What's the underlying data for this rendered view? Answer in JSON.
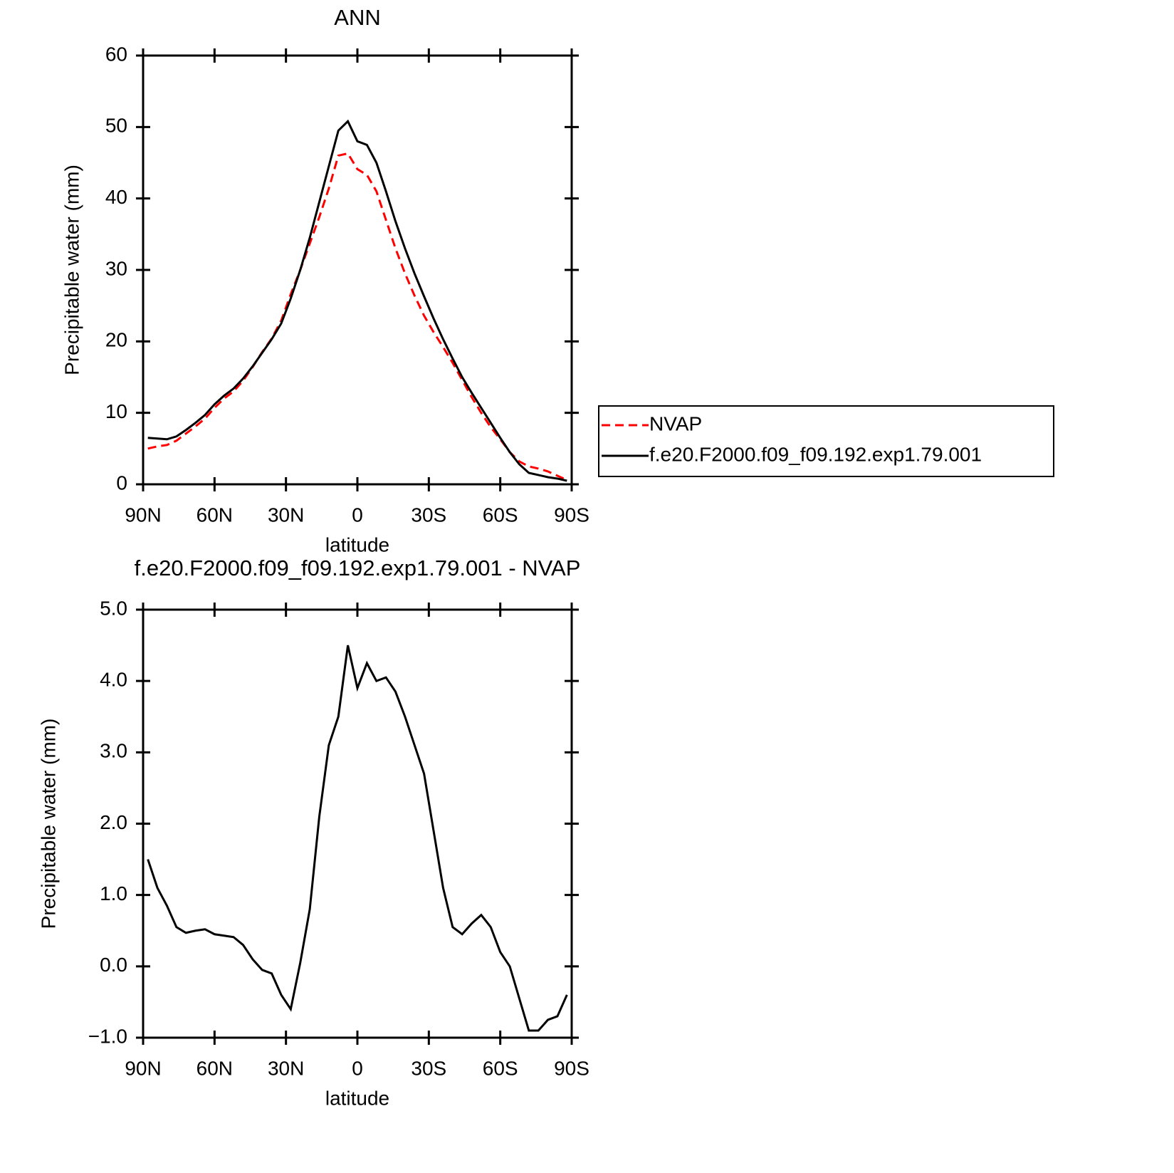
{
  "chart_data": [
    {
      "type": "line",
      "title": "ANN",
      "xlabel": "latitude",
      "ylabel": "Precipitable water (mm)",
      "x": [
        88,
        84,
        80,
        76,
        72,
        68,
        64,
        60,
        56,
        52,
        48,
        44,
        40,
        36,
        32,
        28,
        24,
        20,
        16,
        12,
        8,
        4,
        0,
        -4,
        -8,
        -12,
        -16,
        -20,
        -24,
        -28,
        -32,
        -36,
        -40,
        -44,
        -48,
        -52,
        -56,
        -60,
        -64,
        -68,
        -72,
        -76,
        -80,
        -84,
        -88
      ],
      "series": [
        {
          "name": "NVAP",
          "color": "#ff0000",
          "dash": "dashed",
          "values": [
            5.0,
            5.3,
            5.5,
            6.1,
            7.1,
            8.1,
            9.2,
            10.7,
            12.0,
            13.0,
            14.5,
            16.4,
            18.5,
            20.4,
            22.9,
            26.6,
            30.0,
            33.7,
            37.4,
            41.4,
            46.0,
            46.3,
            44.1,
            43.3,
            41.0,
            37.0,
            33.0,
            29.5,
            26.4,
            23.6,
            21.3,
            19.2,
            17.0,
            14.6,
            12.2,
            10.0,
            8.0,
            6.3,
            4.5,
            3.2,
            2.5,
            2.2,
            1.8,
            1.2,
            0.6
          ]
        },
        {
          "name": "f.e20.F2000.f09_f09.192.exp1.79.001",
          "color": "#000000",
          "dash": "solid",
          "values": [
            6.5,
            6.4,
            6.3,
            6.7,
            7.6,
            8.6,
            9.7,
            11.2,
            12.4,
            13.4,
            14.8,
            16.5,
            18.4,
            20.3,
            22.5,
            26.0,
            30.0,
            34.5,
            39.5,
            44.5,
            49.5,
            50.8,
            48.0,
            47.5,
            45.0,
            41.0,
            36.8,
            33.0,
            29.5,
            26.3,
            23.2,
            20.3,
            17.6,
            15.0,
            12.8,
            10.7,
            8.6,
            6.5,
            4.5,
            2.8,
            1.6,
            1.3,
            1.0,
            0.8,
            0.5
          ]
        }
      ],
      "xlim": [
        90,
        -90
      ],
      "xticks": [
        {
          "value": 90,
          "label": "90N"
        },
        {
          "value": 60,
          "label": "60N"
        },
        {
          "value": 30,
          "label": "30N"
        },
        0,
        {
          "value": -30,
          "label": "30S"
        },
        {
          "value": -60,
          "label": "60S"
        },
        {
          "value": -90,
          "label": "90S"
        }
      ],
      "ylim": [
        0,
        60
      ],
      "yticks": [
        0,
        10,
        20,
        30,
        40,
        50,
        60
      ],
      "legend": "right"
    },
    {
      "type": "line",
      "title": "f.e20.F2000.f09_f09.192.exp1.79.001 - NVAP",
      "xlabel": "latitude",
      "ylabel": "Precipitable water (mm)",
      "x": [
        88,
        84,
        80,
        76,
        72,
        68,
        64,
        60,
        56,
        52,
        48,
        44,
        40,
        36,
        32,
        28,
        24,
        20,
        16,
        12,
        8,
        4,
        0,
        -4,
        -8,
        -12,
        -16,
        -20,
        -24,
        -28,
        -32,
        -36,
        -40,
        -44,
        -48,
        -52,
        -56,
        -60,
        -64,
        -68,
        -72,
        -76,
        -80,
        -84,
        -88
      ],
      "color": "#000000",
      "values": [
        1.5,
        1.1,
        0.85,
        0.55,
        0.47,
        0.5,
        0.52,
        0.45,
        0.43,
        0.41,
        0.3,
        0.1,
        -0.05,
        -0.1,
        -0.4,
        -0.6,
        0.05,
        0.8,
        2.1,
        3.1,
        3.5,
        4.5,
        3.9,
        4.25,
        4.0,
        4.05,
        3.85,
        3.5,
        3.1,
        2.7,
        1.9,
        1.1,
        0.55,
        0.45,
        0.6,
        0.72,
        0.55,
        0.2,
        0.0,
        -0.45,
        -0.9,
        -0.9,
        -0.75,
        -0.7,
        -0.4
      ],
      "xlim": [
        90,
        -90
      ],
      "xticks": [
        {
          "value": 90,
          "label": "90N"
        },
        {
          "value": 60,
          "label": "60N"
        },
        {
          "value": 30,
          "label": "30N"
        },
        0,
        {
          "value": -30,
          "label": "30S"
        },
        {
          "value": -60,
          "label": "60S"
        },
        {
          "value": -90,
          "label": "90S"
        }
      ],
      "ylim": [
        -1,
        5
      ],
      "yticks": [
        {
          "value": -1,
          "label": "−1.0"
        },
        {
          "value": 0,
          "label": "0.0"
        },
        {
          "value": 1,
          "label": "1.0"
        },
        {
          "value": 2,
          "label": "2.0"
        },
        {
          "value": 3,
          "label": "3.0"
        },
        {
          "value": 4,
          "label": "4.0"
        },
        {
          "value": 5,
          "label": "5.0"
        }
      ]
    }
  ]
}
